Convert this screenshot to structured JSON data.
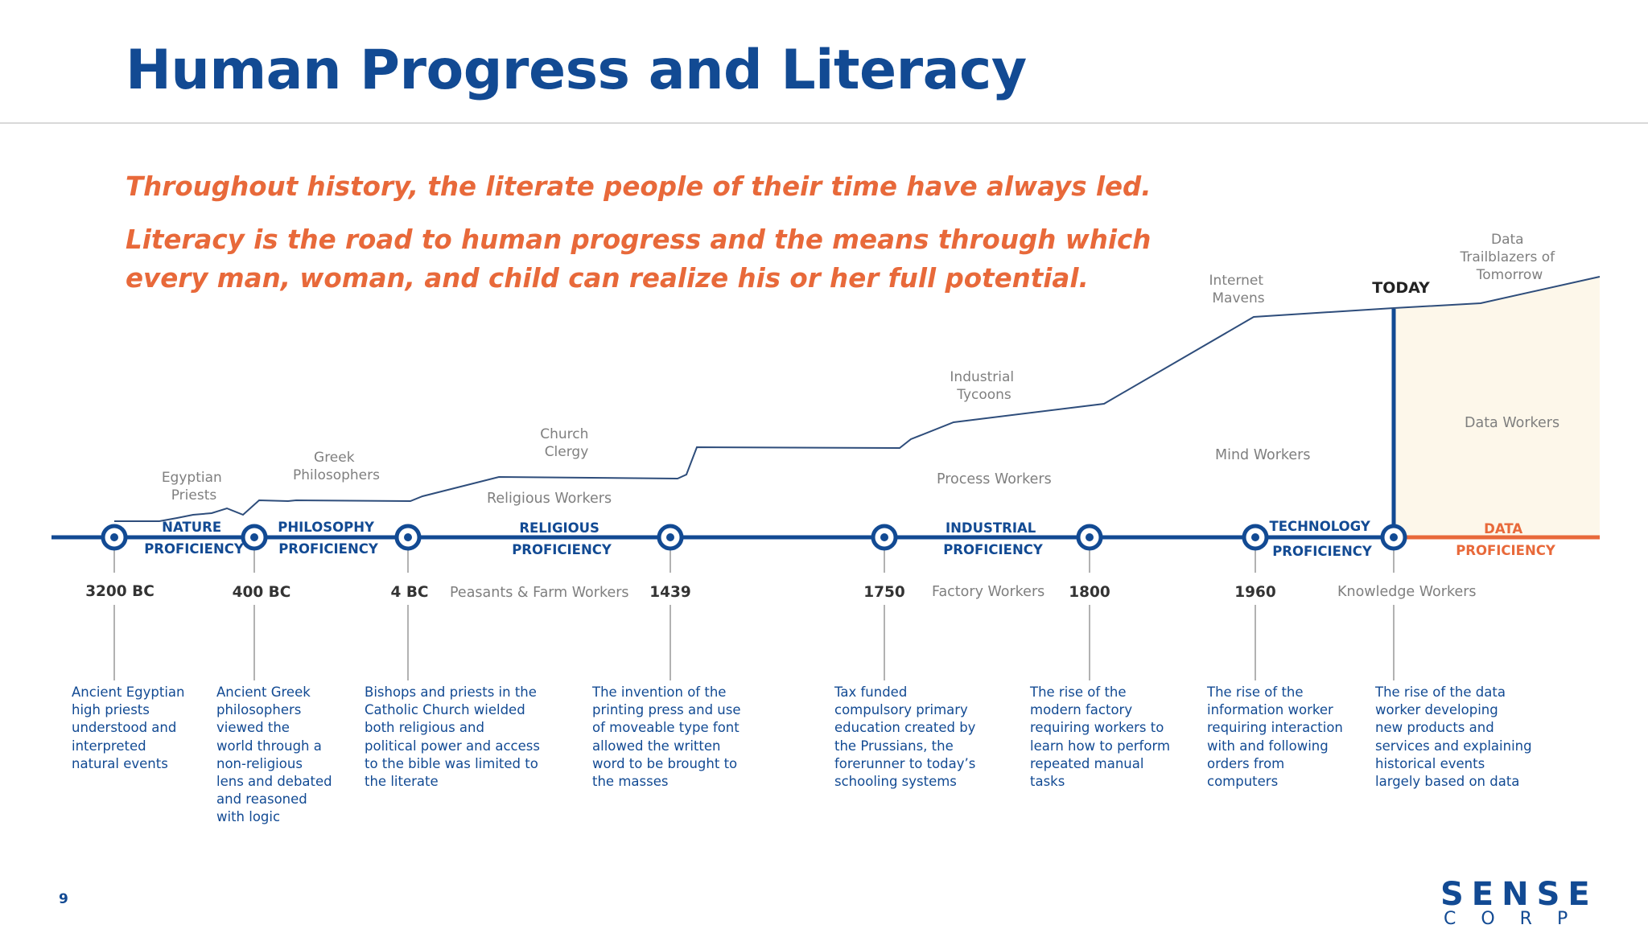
{
  "title": "Human Progress and Literacy",
  "subtitle_1": "Throughout history, the literate people of their time have always led.",
  "subtitle_2": "Literacy is the road to human progress and the means through which every man, woman, and child can realize his or her full potential.",
  "colors": {
    "title_blue": "#124a93",
    "accent_orange": "#e8693a",
    "future_fill": "#fdf7ea",
    "label_gray": "#7f7f7f"
  },
  "today_label": "TODAY",
  "peaks": {
    "egyptian": [
      "Egyptian",
      "Priests"
    ],
    "greek": [
      "Greek",
      "Philosophers"
    ],
    "church": [
      "Church",
      "Clergy"
    ],
    "industrial": [
      "Industrial",
      "Tycoons"
    ],
    "internet": [
      "Internet",
      "Mavens"
    ],
    "trailblazers": [
      "Data",
      "Trailblazers of",
      "Tomorrow"
    ]
  },
  "workers": {
    "religious": "Religious Workers",
    "process": "Process Workers",
    "mind": "Mind Workers",
    "data": "Data Workers",
    "peasants": "Peasants & Farm Workers",
    "factory": "Factory Workers",
    "knowledge": "Knowledge Workers"
  },
  "proficiencies": [
    [
      "NATURE",
      "PROFICIENCY"
    ],
    [
      "PHILOSOPHY",
      "PROFICIENCY"
    ],
    [
      "RELIGIOUS",
      "PROFICIENCY"
    ],
    [
      "INDUSTRIAL",
      "PROFICIENCY"
    ],
    [
      "TECHNOLOGY",
      "PROFICIENCY"
    ],
    [
      "DATA",
      "PROFICIENCY"
    ]
  ],
  "dates": [
    "3200 BC",
    "400 BC",
    "4 BC",
    "1439",
    "1750",
    "1800",
    "1960"
  ],
  "descriptions": [
    "Ancient Egyptian\nhigh priests\nunderstood and\ninterpreted\nnatural events",
    "Ancient Greek\nphilosophers\nviewed the\nworld through a\nnon-religious\nlens and debated\nand reasoned\nwith logic",
    "Bishops and priests in the\nCatholic Church wielded\nboth religious and\npolitical power and access\nto the bible was limited to\nthe literate",
    "The invention of the\nprinting press and use\nof moveable type font\nallowed the written\nword to be brought to\nthe masses",
    "Tax funded\ncompulsory primary\neducation created by\nthe Prussians, the\nforerunner to today’s\nschooling systems",
    "The rise of the\nmodern factory\nrequiring workers to\nlearn how to perform\nrepeated manual\ntasks",
    "The rise of the\ninformation worker\nrequiring interaction\nwith and following\norders from\ncomputers",
    "The rise of the data\nworker developing\nnew products and\nservices and explaining\nhistorical events\nlargely based on data"
  ],
  "page_number": "9",
  "logo": {
    "top": "SENSE",
    "bottom": "CORP"
  }
}
